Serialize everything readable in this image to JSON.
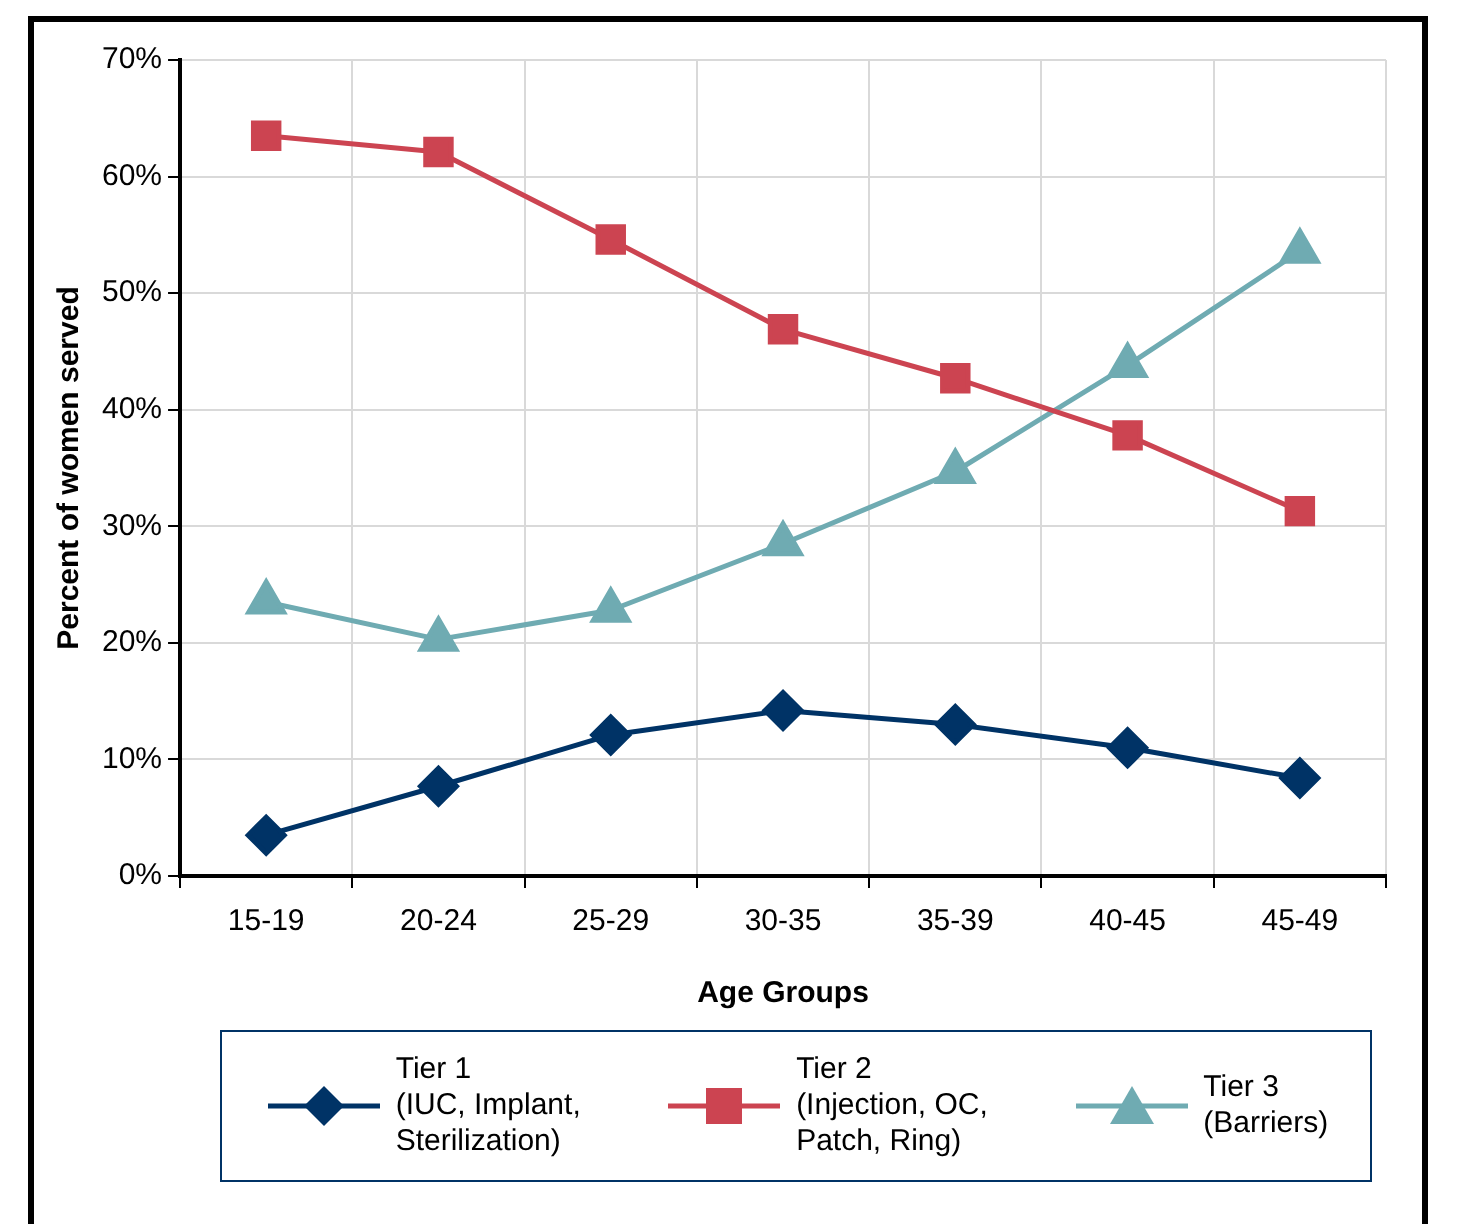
{
  "chart_data": {
    "type": "line",
    "xlabel": "Age Groups",
    "ylabel": "Percent of women served",
    "categories": [
      "15-19",
      "20-24",
      "25-29",
      "30-35",
      "35-39",
      "40-45",
      "45-49"
    ],
    "series": [
      {
        "name": "Tier 1\n(IUC, Implant,\nSterilization)",
        "color": "#003366",
        "marker": "diamond",
        "values": [
          3.5,
          7.7,
          12.1,
          14.2,
          13.0,
          11.0,
          8.4
        ]
      },
      {
        "name": "Tier 2\n(Injection, OC,\nPatch, Ring)",
        "color": "#cc4451",
        "marker": "square",
        "values": [
          63.5,
          62.1,
          54.6,
          46.9,
          42.7,
          37.8,
          31.3
        ]
      },
      {
        "name": "Tier 3\n(Barriers)",
        "color": "#6fabb2",
        "marker": "triangle",
        "values": [
          23.5,
          20.3,
          22.8,
          28.5,
          34.7,
          43.8,
          53.6
        ]
      }
    ],
    "ylim": [
      0,
      70
    ],
    "yticks": [
      {
        "value": 0,
        "label": "0%"
      },
      {
        "value": 10,
        "label": "10%"
      },
      {
        "value": 20,
        "label": "20%"
      },
      {
        "value": 30,
        "label": "30%"
      },
      {
        "value": 40,
        "label": "40%"
      },
      {
        "value": 50,
        "label": "50%"
      },
      {
        "value": 60,
        "label": "60%"
      },
      {
        "value": 70,
        "label": "70%"
      }
    ],
    "grid": true,
    "legend": "bottom",
    "line_style": "solid"
  }
}
